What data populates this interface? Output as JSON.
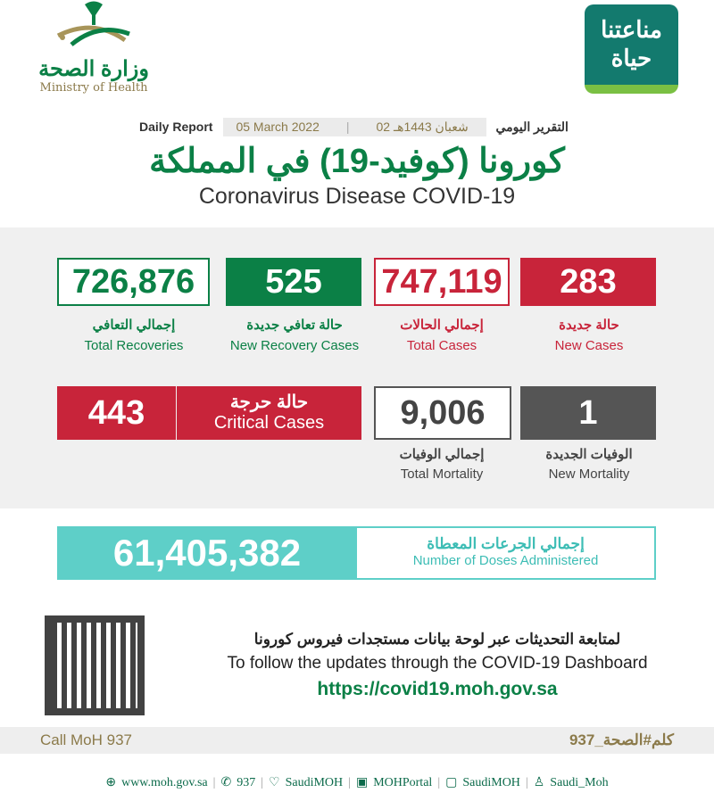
{
  "logos": {
    "moh_ar": "وزارة الصحة",
    "moh_en": "Ministry of Health",
    "campaign_ar": "مناعتنا حياة"
  },
  "header": {
    "report_ar": "التقرير اليومي",
    "hijri_date": "02 شعبان 1443هـ",
    "gregorian_date": "05 March 2022",
    "report_en": "Daily Report"
  },
  "title_ar": "كورونا (كوفيد-19) في المملكة",
  "title_en": "Coronavirus Disease COVID-19",
  "stats": {
    "total_recoveries": {
      "value": "726,876",
      "ar": "إجمالي التعافي",
      "en": "Total Recoveries"
    },
    "new_recoveries": {
      "value": "525",
      "ar": "حالة تعافي جديدة",
      "en": "New Recovery Cases"
    },
    "total_cases": {
      "value": "747,119",
      "ar": "إجمالي الحالات",
      "en": "Total Cases"
    },
    "new_cases": {
      "value": "283",
      "ar": "حالة جديدة",
      "en": "New Cases"
    },
    "critical": {
      "value": "443",
      "ar": "حالة حرجة",
      "en": "Critical Cases"
    },
    "total_mortality": {
      "value": "9,006",
      "ar": "إجمالي الوفيات",
      "en": "Total Mortality"
    },
    "new_mortality": {
      "value": "1",
      "ar": "الوفيات الجديدة",
      "en": "New Mortality"
    }
  },
  "doses": {
    "value": "61,405,382",
    "ar": "إجمالي الجرعات المعطاة",
    "en": "Number of Doses Administered"
  },
  "dashboard": {
    "ar": "لمتابعة التحديثات عبر لوحة بيانات مستجدات فيروس كورونا",
    "en": "To follow the updates through the COVID-19 Dashboard",
    "url": "https://covid19.moh.gov.sa"
  },
  "call": {
    "en": "Call MoH 937",
    "ar": "كلم#الصحة_937"
  },
  "footer": [
    "www.moh.gov.sa",
    "937",
    "SaudiMOH",
    "MOHPortal",
    "SaudiMOH",
    "Saudi_Moh"
  ],
  "colors": {
    "green": "#0b8046",
    "red": "#c8243a",
    "gray": "#555555",
    "teal": "#5ecfc8",
    "gold": "#8b7a4a"
  }
}
